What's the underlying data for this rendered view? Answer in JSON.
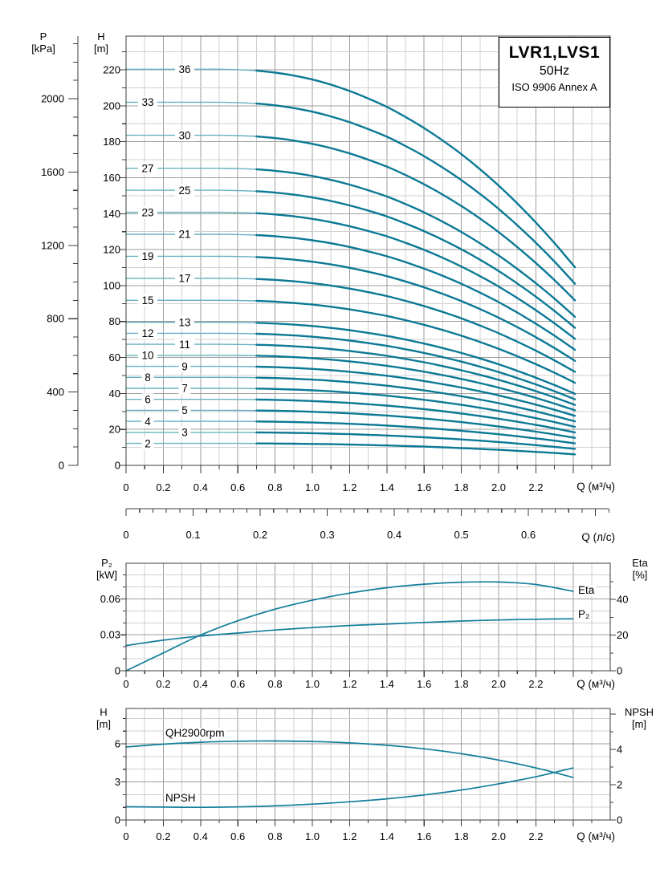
{
  "title_box": {
    "model": "LVR1,LVS1",
    "frequency": "50Hz",
    "standard": "ISO 9906 Annex A"
  },
  "axis_titles": {
    "pressure": {
      "line1": "P",
      "line2": "[kPa]"
    },
    "head_main": {
      "line1": "H",
      "line2": "[m]"
    },
    "power": {
      "line1": "P₂",
      "line2": "[kW]"
    },
    "eta": {
      "line1": "Eta",
      "line2": "[%]"
    },
    "head_small": {
      "line1": "H",
      "line2": "[m]"
    },
    "npsh": {
      "line1": "NPSH",
      "line2": "[m]"
    },
    "flow_m3h": "Q (м³/ч)",
    "flow_ls": "Q (л/с)"
  },
  "curve_tags": {
    "eta": "Eta",
    "p2": "P₂",
    "qh": "QH2900rpm",
    "npsh": "NPSH"
  },
  "colors": {
    "background": "#ffffff",
    "curve_light": "#68b0c2",
    "curve_dark": "#0b7995",
    "curve_mid": "#127e9b",
    "grid_minor": "#d0d0d0",
    "grid_major": "#9e9e9e",
    "axis": "#3c3c3c",
    "text": "#000000"
  },
  "chart_data": [
    {
      "id": "main-qh-multistage",
      "type": "line",
      "title": "LVR1,LVS1 50Hz ISO 9906 Annex A",
      "xlabel": "Q (м³/ч)",
      "xlabel_secondary": "Q (л/с)",
      "ylabel": "H [m]",
      "ylabel_secondary": "P [kPa]",
      "xlim": [
        0,
        2.6
      ],
      "ylim": [
        0,
        238
      ],
      "x_tick_labels": [
        "0",
        "0.2",
        "0.4",
        "0.6",
        "0.8",
        "1.0",
        "1.2",
        "1.4",
        "1.6",
        "1.8",
        "2.0",
        "2.2"
      ],
      "x2_tick_labels": [
        "0",
        "0.1",
        "0.2",
        "0.3",
        "0.4",
        "0.5",
        "0.6"
      ],
      "y_tick_labels": [
        "0",
        "20",
        "40",
        "60",
        "80",
        "100",
        "120",
        "140",
        "160",
        "180",
        "200",
        "220"
      ],
      "pressure_tick_labels": [
        "0",
        "400",
        "800",
        "1200",
        "1600",
        "2000"
      ],
      "stages": [
        2,
        3,
        4,
        5,
        6,
        7,
        8,
        9,
        10,
        11,
        12,
        13,
        15,
        17,
        19,
        21,
        23,
        25,
        27,
        30,
        33,
        36
      ],
      "single_stage_shutoff_head_m": 6.12,
      "curve_shape_q": [
        0,
        0.1,
        0.2,
        0.3,
        0.4,
        0.5,
        0.6,
        0.7,
        0.8,
        0.9,
        1.0,
        1.1,
        1.2,
        1.3,
        1.4,
        1.5,
        1.6,
        1.7,
        1.8,
        1.9,
        2.0,
        2.1,
        2.2,
        2.3,
        2.41
      ],
      "curve_shape_ratio": [
        1,
        1,
        1,
        1,
        1,
        1,
        0.999,
        0.9965,
        0.9915,
        0.984,
        0.974,
        0.961,
        0.945,
        0.926,
        0.905,
        0.8795,
        0.8515,
        0.82,
        0.7856,
        0.7476,
        0.7065,
        0.6613,
        0.613,
        0.5612,
        0.5
      ],
      "curve_end_q": 2.41,
      "thick_from_q": 0.7
    },
    {
      "id": "power-efficiency",
      "type": "line",
      "xlabel": "Q (м³/ч)",
      "x_tick_labels": [
        "0",
        "0.2",
        "0.4",
        "0.6",
        "0.8",
        "1.0",
        "1.2",
        "1.4",
        "1.6",
        "1.8",
        "2.0",
        "2.2"
      ],
      "x": [
        0,
        0.2,
        0.4,
        0.6,
        0.8,
        1.0,
        1.2,
        1.4,
        1.6,
        1.8,
        2.0,
        2.2,
        2.4
      ],
      "series": [
        {
          "name": "P₂",
          "unit": "kW",
          "axis": "left",
          "values": [
            0.021,
            0.0255,
            0.029,
            0.0315,
            0.034,
            0.036,
            0.0378,
            0.039,
            0.0403,
            0.0415,
            0.0424,
            0.043,
            0.0434
          ]
        },
        {
          "name": "Eta",
          "unit": "%",
          "axis": "right",
          "values": [
            0,
            10,
            20,
            28,
            34.5,
            39.5,
            43.5,
            46.5,
            48.5,
            49.6,
            49.7,
            48.3,
            44.5
          ]
        }
      ],
      "left_axis": {
        "label": "P₂ [kW]",
        "tick_labels": [
          "0",
          "0.03",
          "0.06"
        ],
        "max": 0.09
      },
      "right_axis": {
        "label": "Eta [%]",
        "tick_labels": [
          "0",
          "20",
          "40"
        ],
        "max": 60
      }
    },
    {
      "id": "qh-single-stage-npsh",
      "type": "line",
      "xlabel": "Q (м³/ч)",
      "x_tick_labels": [
        "0",
        "0.2",
        "0.4",
        "0.6",
        "0.8",
        "1.0",
        "1.2",
        "1.4",
        "1.6",
        "1.8",
        "2.0",
        "2.2"
      ],
      "x": [
        0,
        0.2,
        0.4,
        0.6,
        0.8,
        1.0,
        1.2,
        1.4,
        1.6,
        1.8,
        2.0,
        2.2,
        2.4
      ],
      "series": [
        {
          "name": "QH2900rpm",
          "unit": "m",
          "axis": "left",
          "values": [
            5.75,
            5.97,
            6.12,
            6.2,
            6.22,
            6.18,
            6.07,
            5.88,
            5.6,
            5.22,
            4.72,
            4.1,
            3.35
          ]
        },
        {
          "name": "NPSH",
          "unit": "m",
          "axis": "right",
          "values": [
            0.75,
            0.73,
            0.72,
            0.74,
            0.8,
            0.9,
            1.03,
            1.2,
            1.42,
            1.7,
            2.05,
            2.45,
            2.95
          ]
        }
      ],
      "left_axis": {
        "label": "H [m]",
        "tick_labels": [
          "0",
          "3",
          "6"
        ],
        "max": 8.8
      },
      "right_axis": {
        "label": "NPSH [m]",
        "tick_labels": [
          "0",
          "2",
          "4"
        ],
        "max": 6.3
      }
    }
  ]
}
